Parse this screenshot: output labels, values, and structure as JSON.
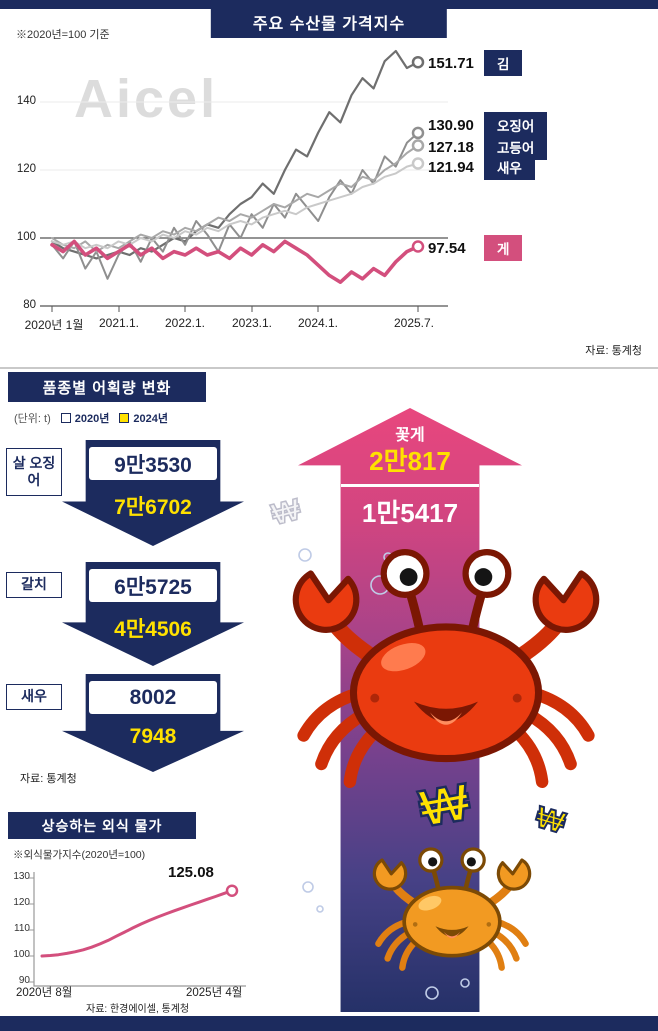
{
  "watermark": "Aicel",
  "colors": {
    "navy": "#1c2b5e",
    "pink": "#d34f7d",
    "yellow": "#ffe100"
  },
  "chart_data": [
    {
      "type": "line",
      "title": "주요 수산물 가격지수",
      "note": "※2020년=100 기준",
      "source": "자료: 통계청",
      "x_ticks": [
        "2020년 1월",
        "2021.1.",
        "2022.1.",
        "2023.1.",
        "2024.1.",
        "2025.7."
      ],
      "y_ticks": [
        "140",
        "120",
        "100",
        "80"
      ],
      "ylim": [
        80,
        160
      ],
      "legend_position": "right",
      "series": [
        {
          "name": "김",
          "end_label": "151.71",
          "color": "#6f6f6f",
          "width": 2.2,
          "values": [
            99,
            97,
            96,
            95,
            94,
            95,
            96,
            95,
            97,
            96,
            98,
            100,
            99,
            102,
            104,
            103,
            107,
            110,
            112,
            116,
            113,
            120,
            126,
            124,
            131,
            137,
            134,
            142,
            147,
            144,
            152,
            155,
            150,
            151.7
          ]
        },
        {
          "name": "오징어",
          "end_label": "130.90",
          "color": "#8f8f8f",
          "width": 2,
          "values": [
            98,
            94,
            99,
            91,
            96,
            88,
            95,
            99,
            93,
            100,
            96,
            103,
            98,
            105,
            101,
            96,
            104,
            100,
            107,
            103,
            110,
            106,
            113,
            109,
            105,
            112,
            117,
            113,
            120,
            116,
            124,
            121,
            128,
            130.9
          ]
        },
        {
          "name": "고등어",
          "end_label": "127.18",
          "color": "#a8a8a8",
          "width": 2,
          "values": [
            100,
            98,
            97,
            99,
            96,
            98,
            97,
            99,
            101,
            100,
            102,
            101,
            103,
            102,
            104,
            106,
            105,
            107,
            106,
            108,
            110,
            109,
            111,
            113,
            112,
            114,
            116,
            115,
            118,
            117,
            120,
            122,
            125,
            127.2
          ]
        },
        {
          "name": "새우",
          "end_label": "121.94",
          "color": "#c9c9c9",
          "width": 2,
          "values": [
            99,
            98,
            99,
            97,
            98,
            97,
            99,
            98,
            100,
            99,
            101,
            100,
            102,
            101,
            103,
            102,
            104,
            105,
            104,
            106,
            107,
            108,
            107,
            109,
            110,
            111,
            112,
            113,
            115,
            116,
            118,
            119,
            121,
            121.9
          ]
        },
        {
          "name": "게",
          "end_label": "97.54",
          "color": "#d34f7d",
          "width": 3.6,
          "values": [
            98,
            96,
            99,
            95,
            97,
            94,
            96,
            98,
            95,
            97,
            94,
            96,
            95,
            97,
            95,
            96,
            94,
            97,
            95,
            98,
            96,
            99,
            97,
            95,
            92,
            89,
            87,
            90,
            88,
            91,
            89,
            93,
            96,
            97.5
          ]
        }
      ]
    },
    {
      "type": "bar",
      "title": "품종별 어획량 변화",
      "unit_note": "(단위: t)",
      "legend": [
        {
          "label": "2020년",
          "color": "#ffffff"
        },
        {
          "label": "2024년",
          "color": "#ffe100"
        }
      ],
      "rows": [
        {
          "species": "살 오징어",
          "v2020": "9만3530",
          "v2024": "7만6702",
          "trend": "down"
        },
        {
          "species": "갈치",
          "v2020": "6만5725",
          "v2024": "4만4506",
          "trend": "down"
        },
        {
          "species": "새우",
          "v2020": "8002",
          "v2024": "7948",
          "trend": "down"
        },
        {
          "species": "꽃게",
          "v2020": "1만5417",
          "v2024": "2만817",
          "trend": "up"
        }
      ],
      "source": "자료: 통계청"
    },
    {
      "type": "line",
      "title": "상승하는 외식 물가",
      "note": "※외식물가지수(2020년=100)",
      "source": "자료: 한경에이셀, 통계청",
      "x_ticks": [
        "2020년 8월",
        "2025년 4월"
      ],
      "y_ticks": [
        "130",
        "120",
        "110",
        "100",
        "90"
      ],
      "ylim": [
        90,
        130
      ],
      "end_label": "125.08",
      "series": [
        {
          "name": "외식물가지수",
          "color": "#d34f7d",
          "width": 3,
          "values": [
            100,
            100.2,
            100.5,
            101,
            101.6,
            102.4,
            103.4,
            104.6,
            106,
            107.6,
            109.2,
            110.8,
            112.3,
            113.7,
            115,
            116.2,
            117.4,
            118.5,
            119.6,
            120.7,
            121.8,
            122.9,
            124,
            125.1
          ]
        }
      ]
    }
  ],
  "won_symbol": "₩"
}
